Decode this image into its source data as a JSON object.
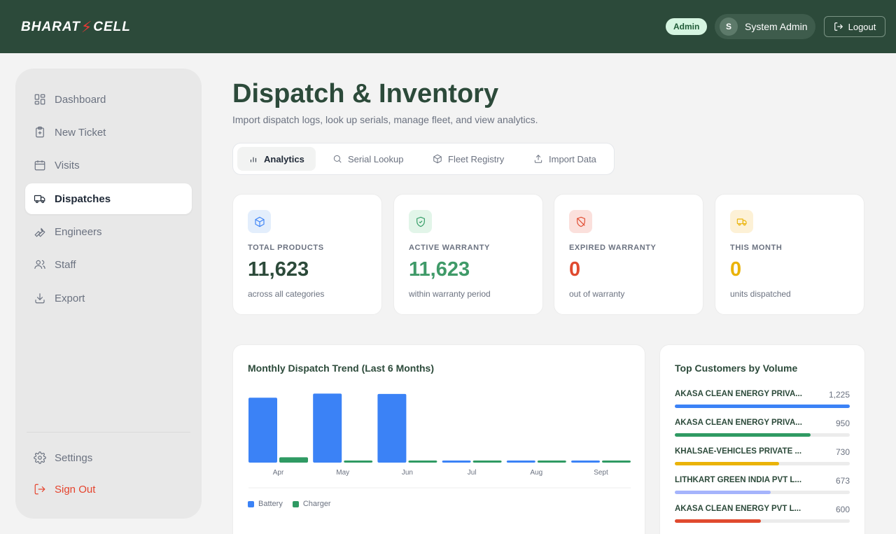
{
  "header": {
    "logo_left": "BHARAT",
    "logo_right": "CELL",
    "role_badge": "Admin",
    "user_initial": "S",
    "user_name": "System Admin",
    "logout_label": "Logout"
  },
  "sidebar": {
    "items": [
      {
        "label": "Dashboard",
        "icon": "grid-icon"
      },
      {
        "label": "New Ticket",
        "icon": "clipboard-plus-icon"
      },
      {
        "label": "Visits",
        "icon": "calendar-icon"
      },
      {
        "label": "Dispatches",
        "icon": "truck-icon",
        "active": true
      },
      {
        "label": "Engineers",
        "icon": "wrench-icon"
      },
      {
        "label": "Staff",
        "icon": "users-icon"
      },
      {
        "label": "Export",
        "icon": "download-icon"
      }
    ],
    "settings_label": "Settings",
    "signout_label": "Sign Out"
  },
  "page": {
    "title": "Dispatch & Inventory",
    "subtitle": "Import dispatch logs, look up serials, manage fleet, and view analytics."
  },
  "tabs": [
    {
      "label": "Analytics",
      "icon": "bar-chart-icon",
      "active": true
    },
    {
      "label": "Serial Lookup",
      "icon": "search-icon"
    },
    {
      "label": "Fleet Registry",
      "icon": "package-icon"
    },
    {
      "label": "Import Data",
      "icon": "upload-icon"
    }
  ],
  "stats": [
    {
      "label": "TOTAL PRODUCTS",
      "value": "11,623",
      "sub": "across all categories",
      "color": "#2c4a3a",
      "icon": "box-icon"
    },
    {
      "label": "ACTIVE WARRANTY",
      "value": "11,623",
      "sub": "within warranty period",
      "color": "#3f9a68",
      "icon": "shield-check-icon"
    },
    {
      "label": "EXPIRED WARRANTY",
      "value": "0",
      "sub": "out of warranty",
      "color": "#e04a2f",
      "icon": "shield-off-icon"
    },
    {
      "label": "THIS MONTH",
      "value": "0",
      "sub": "units dispatched",
      "color": "#eab308",
      "icon": "truck-icon"
    }
  ],
  "chart_data": {
    "type": "bar",
    "title": "Monthly Dispatch Trend (Last 6 Months)",
    "categories": [
      "Apr",
      "May",
      "Jun",
      "Jul",
      "Aug",
      "Sept"
    ],
    "series": [
      {
        "name": "Battery",
        "color": "#3b82f6",
        "values": [
          2050,
          2180,
          2170,
          60,
          60,
          60
        ]
      },
      {
        "name": "Charger",
        "color": "#2f9a63",
        "values": [
          170,
          60,
          60,
          60,
          60,
          60
        ]
      }
    ],
    "ylim": [
      0,
      2300
    ],
    "legend": "bottom-left",
    "grid": false
  },
  "customers": {
    "title": "Top Customers by Volume",
    "items": [
      {
        "name": "AKASA CLEAN ENERGY PRIVA...",
        "value": "1,225",
        "ratio": 1.0,
        "color": "#3b82f6"
      },
      {
        "name": "AKASA CLEAN ENERGY PRIVA...",
        "value": "950",
        "ratio": 0.776,
        "color": "#2f9a63"
      },
      {
        "name": "KHALSAE-VEHICLES PRIVATE ...",
        "value": "730",
        "ratio": 0.596,
        "color": "#eab308"
      },
      {
        "name": "LITHKART GREEN INDIA PVT L...",
        "value": "673",
        "ratio": 0.549,
        "color": "#a5b4fc"
      },
      {
        "name": "AKASA CLEAN ENERGY PVT L...",
        "value": "600",
        "ratio": 0.49,
        "color": "#e04a2f"
      }
    ]
  }
}
